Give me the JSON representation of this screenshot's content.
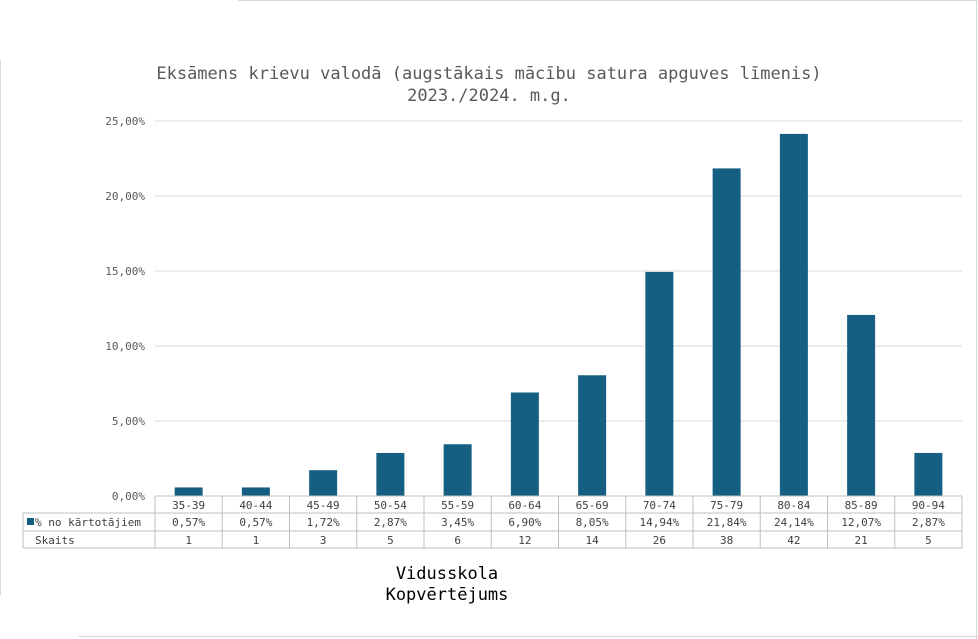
{
  "chart_data": {
    "type": "bar",
    "title_lines": [
      "Eksāmens krievu valodā (augstākais mācību satura apguves līmenis)",
      "2023./2024. m.g."
    ],
    "categories": [
      "35-39",
      "40-44",
      "45-49",
      "50-54",
      "55-59",
      "60-64",
      "65-69",
      "70-74",
      "75-79",
      "80-84",
      "85-89",
      "90-94"
    ],
    "series": [
      {
        "name": "% no kārtotājiem",
        "color": "#156082",
        "values": [
          0.57,
          0.57,
          1.72,
          2.87,
          3.45,
          6.9,
          8.05,
          14.94,
          21.84,
          24.14,
          12.07,
          2.87
        ],
        "labels": [
          "0,57%",
          "0,57%",
          "1,72%",
          "2,87%",
          "3,45%",
          "6,90%",
          "8,05%",
          "14,94%",
          "21,84%",
          "24,14%",
          "12,07%",
          "2,87%"
        ]
      }
    ],
    "table_rows": [
      {
        "label": "Skaits",
        "values": [
          "1",
          "1",
          "3",
          "5",
          "6",
          "12",
          "14",
          "26",
          "38",
          "42",
          "21",
          "5"
        ]
      }
    ],
    "y_ticks": [
      0,
      5,
      10,
      15,
      20,
      25
    ],
    "y_tick_labels": [
      "0,00%",
      "5,00%",
      "10,00%",
      "15,00%",
      "20,00%",
      "25,00%"
    ],
    "ylim": [
      0,
      25
    ],
    "grid": true,
    "xlabel_lines": [
      "Vidusskola",
      "Kopvērtējums"
    ]
  }
}
